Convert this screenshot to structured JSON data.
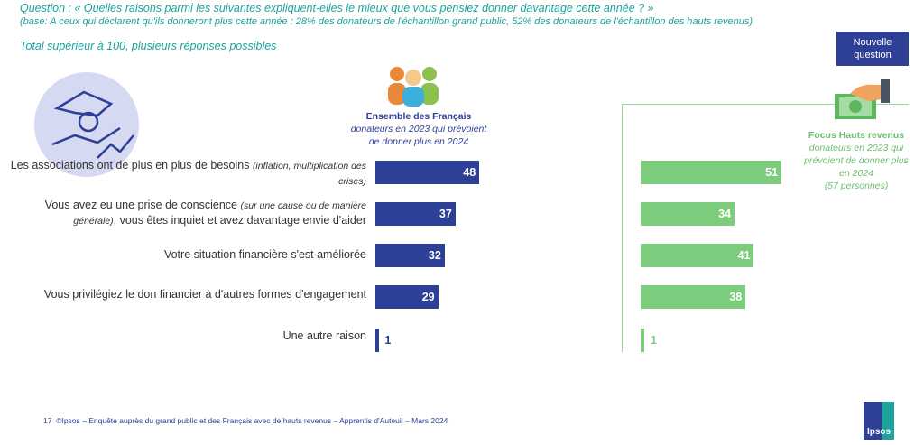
{
  "header": {
    "question": "Question : « Quelles raisons parmi les suivantes expliquent-elles le mieux que vous pensiez donner davantage cette année ? »",
    "base": "(base: A ceux qui déclarent qu'ils donneront plus cette année : 28% des donateurs de l'échantillon grand public, 52% des donateurs de l'échantillon des hauts revenus)",
    "total_note": "Total supérieur à 100, plusieurs réponses possibles",
    "new_question_badge": "Nouvelle question"
  },
  "chart_data": {
    "type": "bar",
    "orientation": "horizontal",
    "categories": [
      {
        "main": "Les associations ont de plus en plus de besoins",
        "note": "(inflation, multiplication des crises)"
      },
      {
        "main": "Vous avez eu une prise de conscience",
        "note": "(sur une cause ou de manière générale)",
        "rest": ", vous êtes inquiet et avez davantage envie d'aider"
      },
      {
        "main": "Votre situation financière s'est améliorée"
      },
      {
        "main": "Vous privilégiez le don financier à d'autres formes d'engagement"
      },
      {
        "main": "Une autre raison"
      }
    ],
    "series": [
      {
        "name": "Ensemble des Français",
        "subtitle": "donateurs en 2023 qui prévoient de donner plus en 2024",
        "color": "#2e3f96",
        "values": [
          48,
          37,
          32,
          29,
          1
        ]
      },
      {
        "name": "Focus Hauts revenus",
        "subtitle": "donateurs en 2023 qui prévoient de donner plus en 2024",
        "count": "(57 personnes)",
        "color": "#7dcb7c",
        "values": [
          51,
          34,
          41,
          38,
          1
        ]
      }
    ]
  },
  "footer": {
    "page": "17",
    "text": "©Ipsos – Enquête auprès du grand public et des Français avec de hauts revenus – Apprentis d'Auteuil – Mars 2024",
    "logo": "Ipsos"
  }
}
